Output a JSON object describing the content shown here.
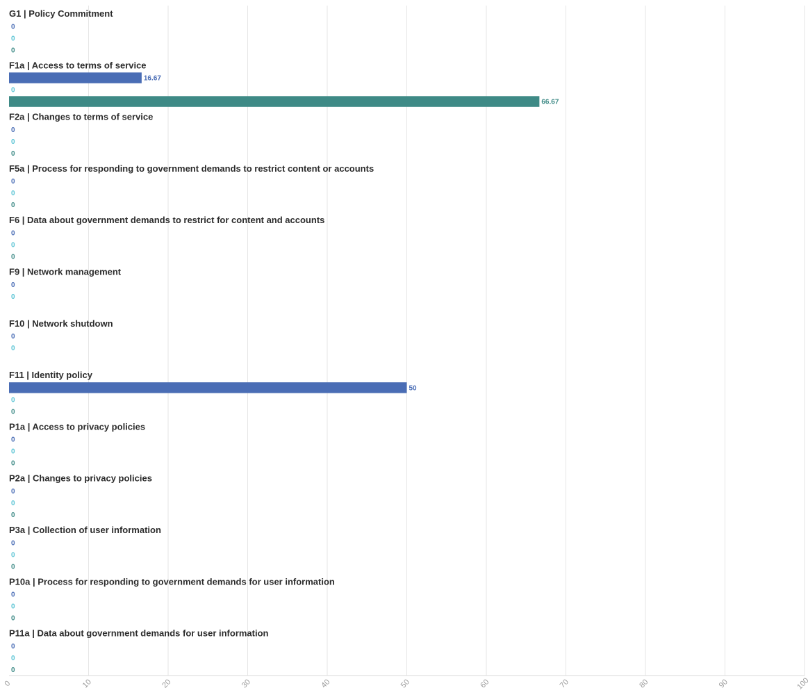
{
  "chart_data": {
    "type": "bar",
    "orientation": "horizontal",
    "xlim": [
      0,
      100
    ],
    "x_ticks": [
      "0",
      "10",
      "20",
      "30",
      "40",
      "50",
      "60",
      "70",
      "80",
      "90",
      "100"
    ],
    "grid": true,
    "title": "",
    "xlabel": "",
    "ylabel": "",
    "categories": [
      "G1 | Policy Commitment",
      "F1a | Access to terms of service",
      "F2a | Changes to terms of service",
      "F5a | Process for responding to government demands to restrict content or accounts",
      "F6 | Data about government demands to restrict for content and accounts",
      "F9 | Network management",
      "F10 | Network shutdown",
      "F11 | Identity policy",
      "P1a | Access to privacy policies",
      "P2a | Changes to privacy policies",
      "P3a | Collection of user information",
      "P10a | Process for responding to government demands for user information",
      "P11a | Data about government demands for user information"
    ],
    "series": [
      {
        "color": "#4a6db5",
        "values": [
          0,
          16.67,
          0,
          0,
          0,
          0,
          0,
          50,
          0,
          0,
          0,
          0,
          0
        ],
        "value_labels": [
          "0",
          "16.67",
          "0",
          "0",
          "0",
          "0",
          "0",
          "50",
          "0",
          "0",
          "0",
          "0",
          "0"
        ]
      },
      {
        "color": "#5bc4d4",
        "values": [
          0,
          0,
          0,
          0,
          0,
          0,
          0,
          0,
          0,
          0,
          0,
          0,
          0
        ],
        "value_labels": [
          "0",
          "0",
          "0",
          "0",
          "0",
          "0",
          "0",
          "0",
          "0",
          "0",
          "0",
          "0",
          "0"
        ]
      },
      {
        "color": "#3e8a86",
        "values": [
          0,
          66.67,
          0,
          0,
          0,
          null,
          null,
          0,
          0,
          0,
          0,
          0,
          0
        ],
        "value_labels": [
          "0",
          "66.67",
          "0",
          "0",
          "0",
          "",
          "",
          "0",
          "0",
          "0",
          "0",
          "0",
          "0"
        ]
      }
    ]
  }
}
